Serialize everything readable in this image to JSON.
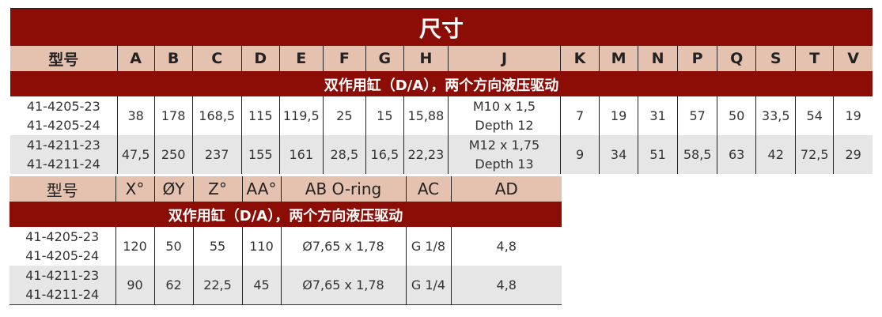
{
  "title": "尺寸",
  "subtitle": "双作用缸（D/A），两个方向液压驱动",
  "table1": {
    "headers": [
      "型号",
      "A",
      "B",
      "C",
      "D",
      "E",
      "F",
      "G",
      "H",
      "J",
      "K",
      "M",
      "N",
      "P",
      "Q",
      "S",
      "T",
      "V"
    ],
    "rows": [
      {
        "models": [
          "41-4205-23",
          "41-4205-24"
        ],
        "values": [
          "38",
          "178",
          "168,5",
          "115",
          "119,5",
          "25",
          "15",
          "15,88",
          [
            "M10 x 1,5",
            "Depth 12"
          ],
          "7",
          "19",
          "31",
          "57",
          "50",
          "33,5",
          "54",
          "19"
        ]
      },
      {
        "models": [
          "41-4211-23",
          "41-4211-24"
        ],
        "values": [
          "47,5",
          "250",
          "237",
          "155",
          "161",
          "28,5",
          "16,5",
          "22,23",
          [
            "M12 x 1,75",
            "Depth 13"
          ],
          "9",
          "34",
          "51",
          "58,5",
          "63",
          "42",
          "72,5",
          "29"
        ]
      }
    ]
  },
  "table2": {
    "headers": [
      "型号",
      "X°",
      "ØY",
      "Z°",
      "AA°",
      "AB O-ring",
      "AC",
      "AD"
    ],
    "rows": [
      {
        "models": [
          "41-4205-23",
          "41-4205-24"
        ],
        "values": [
          "120",
          "50",
          "55",
          "110",
          "Ø7,65 x 1,78",
          "G 1/8",
          "4,8"
        ]
      },
      {
        "models": [
          "41-4211-23",
          "41-4211-24"
        ],
        "values": [
          "90",
          "62",
          "22,5",
          "45",
          "Ø7,65 x 1,78",
          "G 1/4",
          "4,8"
        ]
      }
    ]
  },
  "colors": {
    "dark_red": "#8B0D05",
    "peach": "#E5C1B0",
    "row_gray": "#E6E6E6"
  }
}
